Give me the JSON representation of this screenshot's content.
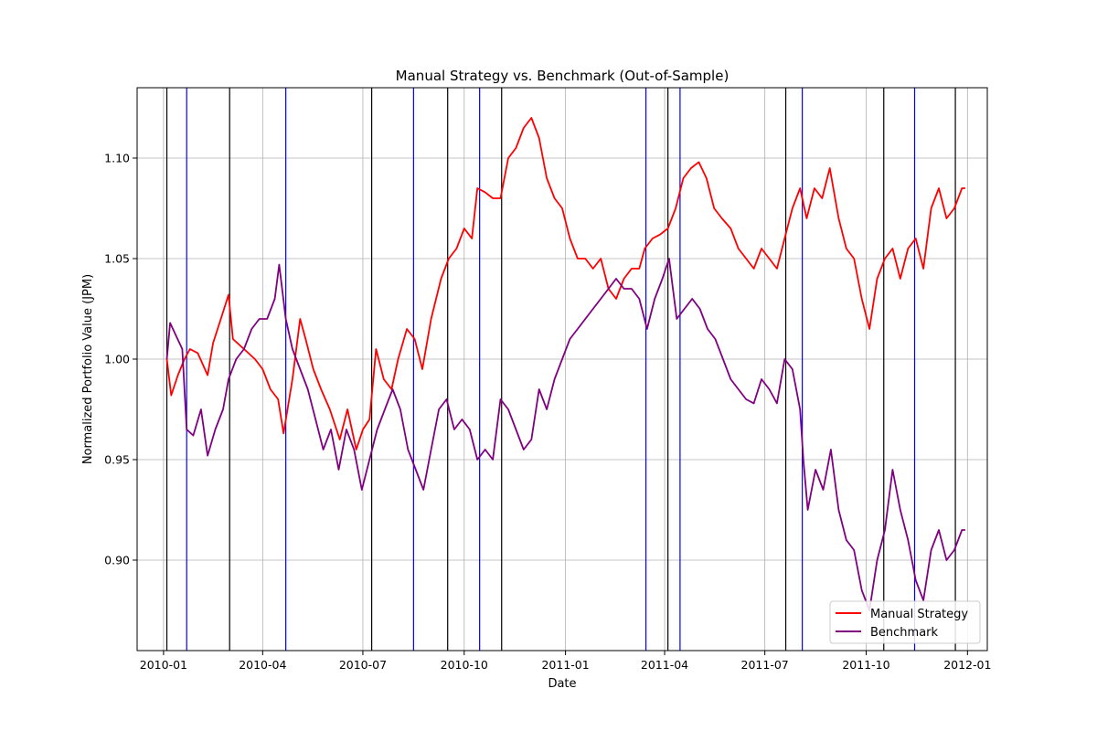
{
  "chart_data": {
    "type": "line",
    "title": "Manual Strategy vs. Benchmark (Out-of-Sample)",
    "xlabel": "Date",
    "ylabel": "Normalized Portfolio Value (JPM)",
    "xlim": [
      "2009-12-08",
      "2012-01-19"
    ],
    "ylim": [
      0.855,
      1.135
    ],
    "x_ticks": [
      "2010-01-01",
      "2010-04-01",
      "2010-07-01",
      "2010-10-01",
      "2011-01-01",
      "2011-04-01",
      "2011-07-01",
      "2011-10-01",
      "2012-01-01"
    ],
    "x_tick_labels": [
      "2010-01",
      "2010-04",
      "2010-07",
      "2010-10",
      "2011-01",
      "2011-04",
      "2011-07",
      "2011-10",
      "2012-01"
    ],
    "y_ticks": [
      0.9,
      0.95,
      1.0,
      1.05,
      1.1
    ],
    "y_tick_labels": [
      "0.90",
      "0.95",
      "1.00",
      "1.05",
      "1.10"
    ],
    "grid": true,
    "legend_position": "bottom-right",
    "series": [
      {
        "name": "Manual Strategy",
        "color": "#ff0000",
        "points": [
          [
            "2010-01-04",
            1.0
          ],
          [
            "2010-01-08",
            0.982
          ],
          [
            "2010-01-14",
            0.992
          ],
          [
            "2010-01-20",
            1.0
          ],
          [
            "2010-01-25",
            1.005
          ],
          [
            "2010-02-01",
            1.003
          ],
          [
            "2010-02-10",
            0.992
          ],
          [
            "2010-02-15",
            1.008
          ],
          [
            "2010-02-22",
            1.02
          ],
          [
            "2010-03-01",
            1.032
          ],
          [
            "2010-03-05",
            1.01
          ],
          [
            "2010-03-15",
            1.005
          ],
          [
            "2010-03-25",
            1.0
          ],
          [
            "2010-04-01",
            0.995
          ],
          [
            "2010-04-08",
            0.985
          ],
          [
            "2010-04-15",
            0.98
          ],
          [
            "2010-04-20",
            0.963
          ],
          [
            "2010-04-28",
            0.99
          ],
          [
            "2010-05-05",
            1.02
          ],
          [
            "2010-05-10",
            1.01
          ],
          [
            "2010-05-17",
            0.995
          ],
          [
            "2010-05-24",
            0.985
          ],
          [
            "2010-06-01",
            0.975
          ],
          [
            "2010-06-10",
            0.96
          ],
          [
            "2010-06-17",
            0.975
          ],
          [
            "2010-06-25",
            0.955
          ],
          [
            "2010-07-01",
            0.965
          ],
          [
            "2010-07-07",
            0.97
          ],
          [
            "2010-07-13",
            1.005
          ],
          [
            "2010-07-20",
            0.99
          ],
          [
            "2010-07-27",
            0.985
          ],
          [
            "2010-08-02",
            1.0
          ],
          [
            "2010-08-10",
            1.015
          ],
          [
            "2010-08-17",
            1.01
          ],
          [
            "2010-08-24",
            0.995
          ],
          [
            "2010-09-01",
            1.02
          ],
          [
            "2010-09-10",
            1.04
          ],
          [
            "2010-09-17",
            1.05
          ],
          [
            "2010-09-24",
            1.055
          ],
          [
            "2010-10-01",
            1.065
          ],
          [
            "2010-10-08",
            1.06
          ],
          [
            "2010-10-13",
            1.085
          ],
          [
            "2010-10-20",
            1.083
          ],
          [
            "2010-10-27",
            1.08
          ],
          [
            "2010-11-03",
            1.08
          ],
          [
            "2010-11-10",
            1.1
          ],
          [
            "2010-11-17",
            1.105
          ],
          [
            "2010-11-24",
            1.115
          ],
          [
            "2010-12-01",
            1.12
          ],
          [
            "2010-12-08",
            1.11
          ],
          [
            "2010-12-15",
            1.09
          ],
          [
            "2010-12-22",
            1.08
          ],
          [
            "2010-12-29",
            1.075
          ],
          [
            "2011-01-05",
            1.06
          ],
          [
            "2011-01-12",
            1.05
          ],
          [
            "2011-01-19",
            1.05
          ],
          [
            "2011-01-26",
            1.045
          ],
          [
            "2011-02-02",
            1.05
          ],
          [
            "2011-02-09",
            1.035
          ],
          [
            "2011-02-16",
            1.03
          ],
          [
            "2011-02-23",
            1.04
          ],
          [
            "2011-03-02",
            1.045
          ],
          [
            "2011-03-09",
            1.045
          ],
          [
            "2011-03-14",
            1.055
          ],
          [
            "2011-03-21",
            1.06
          ],
          [
            "2011-03-28",
            1.062
          ],
          [
            "2011-04-04",
            1.065
          ],
          [
            "2011-04-11",
            1.075
          ],
          [
            "2011-04-18",
            1.09
          ],
          [
            "2011-04-25",
            1.095
          ],
          [
            "2011-05-02",
            1.098
          ],
          [
            "2011-05-09",
            1.09
          ],
          [
            "2011-05-16",
            1.075
          ],
          [
            "2011-05-23",
            1.07
          ],
          [
            "2011-05-31",
            1.065
          ],
          [
            "2011-06-07",
            1.055
          ],
          [
            "2011-06-14",
            1.05
          ],
          [
            "2011-06-21",
            1.045
          ],
          [
            "2011-06-28",
            1.055
          ],
          [
            "2011-07-05",
            1.05
          ],
          [
            "2011-07-12",
            1.045
          ],
          [
            "2011-07-19",
            1.06
          ],
          [
            "2011-07-26",
            1.075
          ],
          [
            "2011-08-02",
            1.085
          ],
          [
            "2011-08-08",
            1.07
          ],
          [
            "2011-08-15",
            1.085
          ],
          [
            "2011-08-22",
            1.08
          ],
          [
            "2011-08-29",
            1.095
          ],
          [
            "2011-09-06",
            1.07
          ],
          [
            "2011-09-13",
            1.055
          ],
          [
            "2011-09-20",
            1.05
          ],
          [
            "2011-09-27",
            1.03
          ],
          [
            "2011-10-04",
            1.015
          ],
          [
            "2011-10-11",
            1.04
          ],
          [
            "2011-10-18",
            1.05
          ],
          [
            "2011-10-25",
            1.055
          ],
          [
            "2011-11-01",
            1.04
          ],
          [
            "2011-11-08",
            1.055
          ],
          [
            "2011-11-15",
            1.06
          ],
          [
            "2011-11-22",
            1.045
          ],
          [
            "2011-11-29",
            1.075
          ],
          [
            "2011-12-06",
            1.085
          ],
          [
            "2011-12-13",
            1.07
          ],
          [
            "2011-12-20",
            1.075
          ],
          [
            "2011-12-27",
            1.085
          ],
          [
            "2011-12-30",
            1.085
          ]
        ]
      },
      {
        "name": "Benchmark",
        "color": "#800080",
        "points": [
          [
            "2010-01-04",
            1.0
          ],
          [
            "2010-01-07",
            1.018
          ],
          [
            "2010-01-12",
            1.012
          ],
          [
            "2010-01-18",
            1.005
          ],
          [
            "2010-01-22",
            0.965
          ],
          [
            "2010-01-28",
            0.962
          ],
          [
            "2010-02-04",
            0.975
          ],
          [
            "2010-02-10",
            0.952
          ],
          [
            "2010-02-17",
            0.965
          ],
          [
            "2010-02-24",
            0.975
          ],
          [
            "2010-03-01",
            0.99
          ],
          [
            "2010-03-08",
            1.0
          ],
          [
            "2010-03-15",
            1.005
          ],
          [
            "2010-03-22",
            1.015
          ],
          [
            "2010-03-29",
            1.02
          ],
          [
            "2010-04-05",
            1.02
          ],
          [
            "2010-04-12",
            1.03
          ],
          [
            "2010-04-16",
            1.047
          ],
          [
            "2010-04-22",
            1.02
          ],
          [
            "2010-04-28",
            1.005
          ],
          [
            "2010-05-05",
            0.995
          ],
          [
            "2010-05-12",
            0.985
          ],
          [
            "2010-05-19",
            0.97
          ],
          [
            "2010-05-26",
            0.955
          ],
          [
            "2010-06-02",
            0.965
          ],
          [
            "2010-06-09",
            0.945
          ],
          [
            "2010-06-16",
            0.965
          ],
          [
            "2010-06-23",
            0.955
          ],
          [
            "2010-06-30",
            0.935
          ],
          [
            "2010-07-07",
            0.95
          ],
          [
            "2010-07-14",
            0.965
          ],
          [
            "2010-07-21",
            0.975
          ],
          [
            "2010-07-28",
            0.985
          ],
          [
            "2010-08-04",
            0.975
          ],
          [
            "2010-08-11",
            0.955
          ],
          [
            "2010-08-18",
            0.945
          ],
          [
            "2010-08-25",
            0.935
          ],
          [
            "2010-09-01",
            0.955
          ],
          [
            "2010-09-08",
            0.975
          ],
          [
            "2010-09-15",
            0.98
          ],
          [
            "2010-09-22",
            0.965
          ],
          [
            "2010-09-29",
            0.97
          ],
          [
            "2010-10-06",
            0.965
          ],
          [
            "2010-10-13",
            0.95
          ],
          [
            "2010-10-20",
            0.955
          ],
          [
            "2010-10-27",
            0.95
          ],
          [
            "2010-11-03",
            0.98
          ],
          [
            "2010-11-10",
            0.975
          ],
          [
            "2010-11-17",
            0.965
          ],
          [
            "2010-11-24",
            0.955
          ],
          [
            "2010-12-01",
            0.96
          ],
          [
            "2010-12-08",
            0.985
          ],
          [
            "2010-12-15",
            0.975
          ],
          [
            "2010-12-22",
            0.99
          ],
          [
            "2010-12-29",
            1.0
          ],
          [
            "2011-01-05",
            1.01
          ],
          [
            "2011-01-12",
            1.015
          ],
          [
            "2011-01-19",
            1.02
          ],
          [
            "2011-01-26",
            1.025
          ],
          [
            "2011-02-02",
            1.03
          ],
          [
            "2011-02-09",
            1.035
          ],
          [
            "2011-02-16",
            1.04
          ],
          [
            "2011-02-23",
            1.035
          ],
          [
            "2011-03-02",
            1.035
          ],
          [
            "2011-03-09",
            1.03
          ],
          [
            "2011-03-16",
            1.015
          ],
          [
            "2011-03-23",
            1.03
          ],
          [
            "2011-03-30",
            1.04
          ],
          [
            "2011-04-05",
            1.05
          ],
          [
            "2011-04-12",
            1.02
          ],
          [
            "2011-04-19",
            1.025
          ],
          [
            "2011-04-26",
            1.03
          ],
          [
            "2011-05-03",
            1.025
          ],
          [
            "2011-05-10",
            1.015
          ],
          [
            "2011-05-17",
            1.01
          ],
          [
            "2011-05-24",
            1.0
          ],
          [
            "2011-05-31",
            0.99
          ],
          [
            "2011-06-07",
            0.985
          ],
          [
            "2011-06-14",
            0.98
          ],
          [
            "2011-06-21",
            0.978
          ],
          [
            "2011-06-28",
            0.99
          ],
          [
            "2011-07-05",
            0.985
          ],
          [
            "2011-07-12",
            0.978
          ],
          [
            "2011-07-19",
            1.0
          ],
          [
            "2011-07-26",
            0.995
          ],
          [
            "2011-08-02",
            0.975
          ],
          [
            "2011-08-05",
            0.95
          ],
          [
            "2011-08-09",
            0.925
          ],
          [
            "2011-08-16",
            0.945
          ],
          [
            "2011-08-23",
            0.935
          ],
          [
            "2011-08-30",
            0.955
          ],
          [
            "2011-09-06",
            0.925
          ],
          [
            "2011-09-13",
            0.91
          ],
          [
            "2011-09-20",
            0.905
          ],
          [
            "2011-09-27",
            0.885
          ],
          [
            "2011-10-04",
            0.875
          ],
          [
            "2011-10-11",
            0.9
          ],
          [
            "2011-10-18",
            0.915
          ],
          [
            "2011-10-25",
            0.945
          ],
          [
            "2011-11-01",
            0.925
          ],
          [
            "2011-11-08",
            0.91
          ],
          [
            "2011-11-15",
            0.89
          ],
          [
            "2011-11-22",
            0.88
          ],
          [
            "2011-11-29",
            0.905
          ],
          [
            "2011-12-06",
            0.915
          ],
          [
            "2011-12-13",
            0.9
          ],
          [
            "2011-12-20",
            0.905
          ],
          [
            "2011-12-27",
            0.915
          ],
          [
            "2011-12-30",
            0.915
          ]
        ]
      }
    ],
    "vertical_lines": [
      {
        "date": "2010-01-04",
        "color": "#000000"
      },
      {
        "date": "2010-01-22",
        "color": "#0000ff"
      },
      {
        "date": "2010-03-02",
        "color": "#000000"
      },
      {
        "date": "2010-04-22",
        "color": "#0000ff"
      },
      {
        "date": "2010-07-09",
        "color": "#000000"
      },
      {
        "date": "2010-08-16",
        "color": "#0000ff"
      },
      {
        "date": "2010-09-16",
        "color": "#000000"
      },
      {
        "date": "2010-10-15",
        "color": "#0000ff"
      },
      {
        "date": "2010-11-04",
        "color": "#000000"
      },
      {
        "date": "2011-03-15",
        "color": "#0000ff"
      },
      {
        "date": "2011-04-04",
        "color": "#000000"
      },
      {
        "date": "2011-04-15",
        "color": "#0000ff"
      },
      {
        "date": "2011-07-20",
        "color": "#000000"
      },
      {
        "date": "2011-08-04",
        "color": "#0000ff"
      },
      {
        "date": "2011-10-17",
        "color": "#000000"
      },
      {
        "date": "2011-11-14",
        "color": "#0000ff"
      },
      {
        "date": "2011-12-21",
        "color": "#000000"
      }
    ]
  }
}
